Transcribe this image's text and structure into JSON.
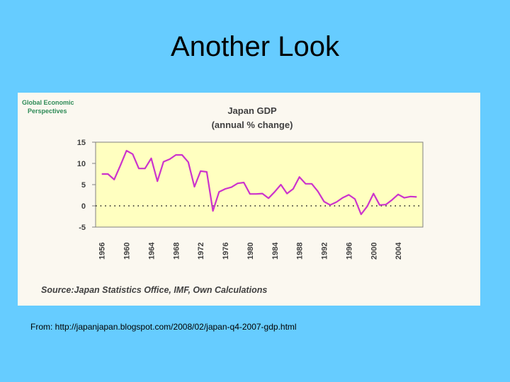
{
  "slide": {
    "title": "Another Look",
    "caption": "From: http://japanjapan.blogspot.com/2008/02/japan-q4-2007-gdp.html"
  },
  "logo": {
    "line1": "Global Economic",
    "line2": "Perspectives"
  },
  "colors": {
    "background": "#66ccff",
    "plot_area": "#ffffc0",
    "line": "#cc33cc",
    "logo_text": "#2e8b57"
  },
  "chart_data": {
    "type": "line",
    "title": "Japan GDP",
    "subtitle": "(annual % change)",
    "source": "Source:Japan Statistics Office, IMF, Own Calculations",
    "ylim": [
      -5,
      15
    ],
    "yticks": [
      "15",
      "10",
      "5",
      "0",
      "-5"
    ],
    "xlim": [
      1955,
      2008
    ],
    "xticks": [
      "1956",
      "1960",
      "1964",
      "1968",
      "1972",
      "1976",
      "1980",
      "1984",
      "1988",
      "1992",
      "1996",
      "2000",
      "2004"
    ],
    "grid": false,
    "legend": "none",
    "series": [
      {
        "x": [
          1956,
          1957,
          1958,
          1959,
          1960,
          1961,
          1962,
          1963,
          1964,
          1965,
          1966,
          1967,
          1968,
          1969,
          1970,
          1971,
          1972,
          1973,
          1974,
          1975,
          1976,
          1977,
          1978,
          1979,
          1980,
          1981,
          1982,
          1983,
          1984,
          1985,
          1986,
          1987,
          1988,
          1989,
          1990,
          1991,
          1992,
          1993,
          1994,
          1995,
          1996,
          1997,
          1998,
          1999,
          2000,
          2001,
          2002,
          2003,
          2004,
          2005,
          2006,
          2007
        ],
        "values": [
          7.5,
          7.5,
          6.2,
          9.5,
          13.0,
          12.2,
          8.8,
          8.8,
          11.2,
          5.8,
          10.4,
          11.0,
          12.0,
          12.0,
          10.3,
          4.5,
          8.2,
          8.0,
          -1.2,
          3.3,
          4.0,
          4.4,
          5.3,
          5.5,
          2.8,
          2.8,
          2.9,
          1.8,
          3.3,
          5.0,
          2.9,
          4.0,
          6.8,
          5.2,
          5.2,
          3.4,
          1.0,
          0.2,
          0.9,
          1.9,
          2.6,
          1.6,
          -2.0,
          -0.1,
          2.9,
          0.2,
          0.3,
          1.4,
          2.7,
          1.9,
          2.2,
          2.1
        ]
      }
    ]
  }
}
